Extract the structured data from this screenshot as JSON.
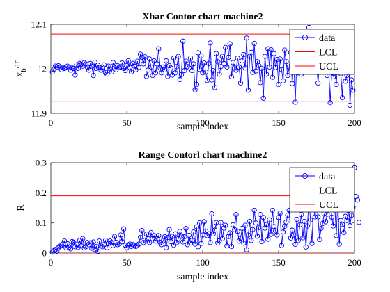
{
  "chart_data": [
    {
      "type": "line",
      "title": "Xbar Contor chart machine2",
      "xlabel": "sample index",
      "ylabel": "x_bar",
      "ylabel_main": "x",
      "ylabel_sub": "b",
      "ylabel_sup": "ar",
      "xlim": [
        0,
        200
      ],
      "ylim": [
        11.9,
        12.1
      ],
      "xticks": [
        0,
        50,
        100,
        150,
        200
      ],
      "yticks": [
        11.9,
        12,
        12.1
      ],
      "xtick_labels": [
        "0",
        "50",
        "100",
        "150",
        "200"
      ],
      "ytick_labels": [
        "11.9",
        "12",
        "12.1"
      ],
      "legend": [
        "data",
        "LCL",
        "UCL"
      ],
      "legend_position": "top-right",
      "colors": {
        "data": "#0000ff",
        "LCL": "#ff0000",
        "UCL": "#ff0000"
      },
      "series": [
        {
          "name": "data",
          "values": [
            11.993,
            11.999,
            12.006,
            12.004,
            12.007,
            12.003,
            11.998,
            12.002,
            12.001,
            12.004,
            12.006,
            12.003,
            11.997,
            12.002,
            12.001,
            11.986,
            12.009,
            12.001,
            12.012,
            12.01,
            12.006,
            12.014,
            12.011,
            12.004,
            11.997,
            12.012,
            12.006,
            11.985,
            12.015,
            12.001,
            12.008,
            12.003,
            11.997,
            12.004,
            12.009,
            11.992,
            11.988,
            12.006,
            12.0,
            11.993,
            12.014,
            12.002,
            11.998,
            12.007,
            12.003,
            12.004,
            12.013,
            12.001,
            11.996,
            12.007,
            12.018,
            12.003,
            11.993,
            12.012,
            12.006,
            11.998,
            12.017,
            12.003,
            12.033,
            12.026,
            12.011,
            12.027,
            11.983,
            11.997,
            12.022,
            12.004,
            11.985,
            12.018,
            11.991,
            12.011,
            12.045,
            12.002,
            11.991,
            12.004,
            11.998,
            12.018,
            11.983,
            12.007,
            12.002,
            11.986,
            12.024,
            11.991,
            12.005,
            12.028,
            11.976,
            11.987,
            12.062,
            11.996,
            12.017,
            12.005,
            12.002,
            12.024,
            11.996,
            12.011,
            11.953,
            11.965,
            12.036,
            11.999,
            12.029,
            11.991,
            12.013,
            11.993,
            11.974,
            12.012,
            12.058,
            11.975,
            11.996,
            11.958,
            12.034,
            12.016,
            11.988,
            12.005,
            12.028,
            12.012,
            12.048,
            12.004,
            12.026,
            12.056,
            11.982,
            12.014,
            12.002,
            11.997,
            12.024,
            12.004,
            11.968,
            12.018,
            12.032,
            12.002,
            12.069,
            11.952,
            12.028,
            12.037,
            11.992,
            12.057,
            11.995,
            12.016,
            12.007,
            11.969,
            12.001,
            11.934,
            12.028,
            11.988,
            12.045,
            12.004,
            12.043,
            11.981,
            12.034,
            12.003,
            12.021,
            11.965,
            12.022,
            11.998,
            11.973,
            12.042,
            12.016,
            11.985,
            12.004,
            12.037,
            11.967,
            12.019,
            11.925,
            12.021,
            11.991,
            12.004,
            11.988,
            12.048,
            12.018,
            12.07,
            12.008,
            12.093,
            12.012,
            12.041,
            11.998,
            12.031,
            12.011,
            11.968,
            12.021,
            12.024,
            12.034,
            12.011,
            12.005,
            11.985,
            12.005,
            11.924,
            11.992,
            11.982,
            12.008,
            11.965,
            12.017,
            12.022,
            11.989,
            11.935,
            12.043,
            11.972,
            11.985,
            12.056,
            11.918,
            11.975,
            11.952
          ]
        },
        {
          "name": "LCL",
          "values": [
            11.926
          ]
        },
        {
          "name": "UCL",
          "values": [
            12.078
          ]
        }
      ]
    },
    {
      "type": "line",
      "title": "Range Contorl chart machine2",
      "xlabel": "sample index",
      "ylabel": "R",
      "xlim": [
        0,
        200
      ],
      "ylim": [
        0,
        0.3
      ],
      "xticks": [
        0,
        50,
        100,
        150,
        200
      ],
      "yticks": [
        0,
        0.1,
        0.2,
        0.3
      ],
      "xtick_labels": [
        "0",
        "50",
        "100",
        "150",
        "200"
      ],
      "ytick_labels": [
        "0",
        "0.1",
        "0.2",
        "0.3"
      ],
      "legend": [
        "data",
        "LCL",
        "UCL"
      ],
      "legend_position": "top-right",
      "colors": {
        "data": "#0000ff",
        "LCL": "#ff0000",
        "UCL": "#ff0000"
      },
      "series": [
        {
          "name": "data",
          "values": [
            0.003,
            0.008,
            0.012,
            0.006,
            0.018,
            0.022,
            0.026,
            0.03,
            0.04,
            0.018,
            0.031,
            0.02,
            0.014,
            0.038,
            0.036,
            0.021,
            0.028,
            0.019,
            0.042,
            0.024,
            0.048,
            0.017,
            0.021,
            0.035,
            0.028,
            0.034,
            0.016,
            0.037,
            0.012,
            0.022,
            0.005,
            0.04,
            0.025,
            0.021,
            0.028,
            0.042,
            0.018,
            0.032,
            0.04,
            0.035,
            0.025,
            0.055,
            0.036,
            0.028,
            0.03,
            0.06,
            0.038,
            0.08,
            0.026,
            0.018,
            0.025,
            0.03,
            0.022,
            0.028,
            0.026,
            0.022,
            0.025,
            0.03,
            0.052,
            0.075,
            0.035,
            0.042,
            0.063,
            0.048,
            0.035,
            0.068,
            0.048,
            0.058,
            0.04,
            0.047,
            0.058,
            0.035,
            0.028,
            0.041,
            0.054,
            0.018,
            0.052,
            0.078,
            0.038,
            0.055,
            0.026,
            0.064,
            0.035,
            0.048,
            0.072,
            0.056,
            0.037,
            0.054,
            0.082,
            0.028,
            0.059,
            0.034,
            0.042,
            0.07,
            0.03,
            0.087,
            0.021,
            0.1,
            0.032,
            0.06,
            0.104,
            0.073,
            0.058,
            0.064,
            0.035,
            0.13,
            0.064,
            0.076,
            0.101,
            0.034,
            0.041,
            0.101,
            0.048,
            0.083,
            0.092,
            0.024,
            0.055,
            0.067,
            0.022,
            0.094,
            0.078,
            0.128,
            0.072,
            0.04,
            0.05,
            0.082,
            0.033,
            0.092,
            0.011,
            0.06,
            0.105,
            0.042,
            0.078,
            0.142,
            0.1,
            0.056,
            0.085,
            0.128,
            0.038,
            0.118,
            0.083,
            0.094,
            0.046,
            0.11,
            0.062,
            0.142,
            0.088,
            0.074,
            0.06,
            0.118,
            0.132,
            0.025,
            0.07,
            0.089,
            0.103,
            0.126,
            0.142,
            0.05,
            0.076,
            0.06,
            0.029,
            0.112,
            0.042,
            0.094,
            0.128,
            0.051,
            0.105,
            0.02,
            0.09,
            0.185,
            0.11,
            0.032,
            0.161,
            0.12,
            0.158,
            0.12,
            0.045,
            0.082,
            0.098,
            0.13,
            0.104,
            0.129,
            0.151,
            0.185,
            0.119,
            0.09,
            0.16,
            0.058,
            0.175,
            0.03,
            0.108,
            0.095,
            0.068,
            0.122,
            0.108,
            0.141,
            0.091,
            0.125,
            0.152,
            0.283,
            0.188,
            0.176,
            0.102
          ]
        },
        {
          "name": "LCL",
          "values": [
            0
          ]
        },
        {
          "name": "UCL",
          "values": [
            0.19
          ]
        }
      ]
    }
  ]
}
